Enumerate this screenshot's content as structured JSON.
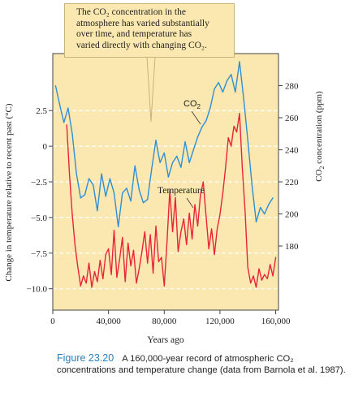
{
  "callout": {
    "line1": "The CO₂ concentration in the",
    "line2": "atmosphere has varied substantially",
    "line3": "over time, and temperature has",
    "line4": "varied directly with changing CO₂."
  },
  "caption": {
    "figure_number": "Figure 23.20",
    "text": "A 160,000-year record of atmospheric CO₂ concentrations and temperature change (data from Barnola et al. 1987)."
  },
  "colors": {
    "plot_background": "#fbe8b0",
    "co2_line": "#2e8fd6",
    "temperature_line": "#e8243a",
    "grid_dash": "#ffffff",
    "callout_border": "#c8b27a"
  },
  "chart_data": {
    "type": "line",
    "xlabel": "Years ago",
    "ylabel_left": "Change in temperature relative to recent past (°C)",
    "ylabel_right": "CO₂ concentration (ppm)",
    "xlim": [
      0,
      162000
    ],
    "ylim_left": [
      -11.5,
      6.5
    ],
    "ylim_right": [
      140,
      300
    ],
    "x_ticks": [
      0,
      40000,
      80000,
      120000,
      160000
    ],
    "x_tick_labels": [
      "0",
      "40,000",
      "80,000",
      "120,000",
      "160,000"
    ],
    "y_left_ticks": [
      2.5,
      0,
      -2.5,
      -5.0,
      -7.5,
      -10.0
    ],
    "y_left_tick_labels": [
      "2.5",
      "0",
      "−2.5",
      "−5.0",
      "−7.5",
      "−10.0"
    ],
    "y_right_ticks": [
      280,
      260,
      240,
      220,
      200,
      180
    ],
    "y_right_tick_labels": [
      "280",
      "260",
      "240",
      "220",
      "200",
      "180"
    ],
    "grid": "horizontal dashed",
    "series": [
      {
        "name": "CO₂",
        "axis": "right",
        "x": [
          2000,
          5000,
          8000,
          11000,
          14000,
          17000,
          20000,
          23000,
          26000,
          29000,
          32000,
          35000,
          38000,
          41000,
          44000,
          47000,
          50000,
          53000,
          56000,
          59000,
          62000,
          65000,
          68000,
          71000,
          74000,
          77000,
          80000,
          83000,
          86000,
          89000,
          92000,
          95000,
          98000,
          101000,
          104000,
          107000,
          110000,
          113000,
          116000,
          119000,
          122000,
          125000,
          128000,
          131000,
          134000,
          137000,
          140000,
          143000,
          146000,
          149000,
          152000,
          155000,
          158000
        ],
        "values": [
          280,
          268,
          257,
          266,
          250,
          225,
          210,
          212,
          222,
          218,
          202,
          225,
          211,
          222,
          213,
          192,
          213,
          216,
          208,
          230,
          215,
          207,
          209,
          228,
          246,
          232,
          238,
          223,
          232,
          236,
          229,
          245,
          232,
          240,
          248,
          254,
          258,
          266,
          278,
          282,
          276,
          283,
          287,
          276,
          295,
          272,
          246,
          218,
          195,
          204,
          200,
          206,
          210
        ]
      },
      {
        "name": "Temperature",
        "axis": "left",
        "x": [
          10000,
          12000,
          14000,
          16000,
          18000,
          20000,
          22000,
          24000,
          26000,
          28000,
          30000,
          32000,
          34000,
          36000,
          38000,
          40000,
          42000,
          44000,
          46000,
          48000,
          50000,
          52000,
          54000,
          56000,
          58000,
          60000,
          62000,
          64000,
          66000,
          68000,
          70000,
          72000,
          74000,
          76000,
          78000,
          80000,
          82000,
          84000,
          86000,
          88000,
          90000,
          92000,
          94000,
          96000,
          98000,
          100000,
          102000,
          104000,
          106000,
          108000,
          110000,
          112000,
          114000,
          116000,
          118000,
          120000,
          122000,
          124000,
          126000,
          128000,
          130000,
          132000,
          134000,
          136000,
          138000,
          140000,
          142000,
          144000,
          146000,
          148000,
          150000,
          152000,
          154000,
          156000,
          158000,
          160000
        ],
        "values": [
          1.5,
          -2.0,
          -4.8,
          -7.0,
          -8.5,
          -9.8,
          -9.1,
          -9.6,
          -8.2,
          -9.9,
          -8.8,
          -9.5,
          -8.0,
          -9.3,
          -7.6,
          -7.2,
          -9.0,
          -5.9,
          -9.2,
          -7.9,
          -6.4,
          -9.5,
          -6.8,
          -8.4,
          -7.3,
          -9.6,
          -8.6,
          -7.4,
          -6.0,
          -8.2,
          -6.2,
          -8.9,
          -5.6,
          -8.1,
          -7.8,
          -9.8,
          -6.7,
          -3.1,
          -6.0,
          -3.6,
          -7.4,
          -6.0,
          -5.1,
          -6.9,
          -4.7,
          -6.5,
          -4.1,
          -5.6,
          -3.4,
          -2.5,
          -4.9,
          -7.2,
          -5.8,
          -7.6,
          -5.8,
          -4.8,
          -3.3,
          -1.5,
          0.6,
          0.0,
          1.4,
          1.0,
          2.3,
          -1.5,
          -4.5,
          -8.5,
          -9.6,
          -9.1,
          -9.9,
          -8.6,
          -9.4,
          -9.0,
          -9.3,
          -8.3,
          -9.1,
          -7.8
        ]
      }
    ],
    "annotations": [
      {
        "text": "CO₂",
        "series": "CO₂"
      },
      {
        "text": "Temperature",
        "series": "Temperature"
      }
    ]
  }
}
